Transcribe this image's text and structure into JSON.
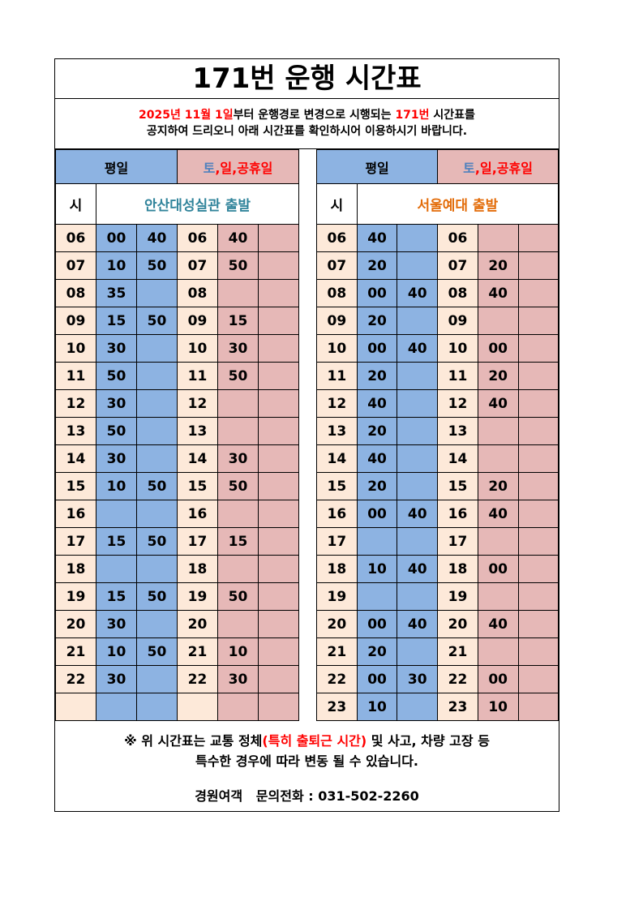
{
  "title": "171번 운행 시간표",
  "notice": {
    "date": "2025년 11월 1일",
    "mid": "부터 운행경로 변경으로 시행되는 ",
    "route": "171번",
    "end": " 시간표를",
    "line2": "공지하여 드리오니 아래 시간표를 확인하시어 이용하시기 바랍니다."
  },
  "headers": {
    "weekday": "평일",
    "weekend_to": "토",
    "weekend_rest": ",일,공휴일",
    "hour": "시"
  },
  "colors": {
    "weekday": "#8db3e2",
    "hour": "#fde9d9",
    "weekend": "#e6b8b7",
    "stop_a": "#31849b",
    "stop_b": "#e36c09"
  },
  "tables": [
    {
      "stop": "안산대성실관 출발",
      "rows": [
        [
          "06",
          "00",
          "40",
          "06",
          "40",
          ""
        ],
        [
          "07",
          "10",
          "50",
          "07",
          "50",
          ""
        ],
        [
          "08",
          "35",
          "",
          "08",
          "",
          ""
        ],
        [
          "09",
          "15",
          "50",
          "09",
          "15",
          ""
        ],
        [
          "10",
          "30",
          "",
          "10",
          "30",
          ""
        ],
        [
          "11",
          "50",
          "",
          "11",
          "50",
          ""
        ],
        [
          "12",
          "30",
          "",
          "12",
          "",
          ""
        ],
        [
          "13",
          "50",
          "",
          "13",
          "",
          ""
        ],
        [
          "14",
          "30",
          "",
          "14",
          "30",
          ""
        ],
        [
          "15",
          "10",
          "50",
          "15",
          "50",
          ""
        ],
        [
          "16",
          "",
          "",
          "16",
          "",
          ""
        ],
        [
          "17",
          "15",
          "50",
          "17",
          "15",
          ""
        ],
        [
          "18",
          "",
          "",
          "18",
          "",
          ""
        ],
        [
          "19",
          "15",
          "50",
          "19",
          "50",
          ""
        ],
        [
          "20",
          "30",
          "",
          "20",
          "",
          ""
        ],
        [
          "21",
          "10",
          "50",
          "21",
          "10",
          ""
        ],
        [
          "22",
          "30",
          "",
          "22",
          "30",
          ""
        ],
        [
          "",
          "",
          "",
          "",
          "",
          ""
        ]
      ]
    },
    {
      "stop": "서울예대 출발",
      "rows": [
        [
          "06",
          "40",
          "",
          "06",
          "",
          ""
        ],
        [
          "07",
          "20",
          "",
          "07",
          "20",
          ""
        ],
        [
          "08",
          "00",
          "40",
          "08",
          "40",
          ""
        ],
        [
          "09",
          "20",
          "",
          "09",
          "",
          ""
        ],
        [
          "10",
          "00",
          "40",
          "10",
          "00",
          ""
        ],
        [
          "11",
          "20",
          "",
          "11",
          "20",
          ""
        ],
        [
          "12",
          "40",
          "",
          "12",
          "40",
          ""
        ],
        [
          "13",
          "20",
          "",
          "13",
          "",
          ""
        ],
        [
          "14",
          "40",
          "",
          "14",
          "",
          ""
        ],
        [
          "15",
          "20",
          "",
          "15",
          "20",
          ""
        ],
        [
          "16",
          "00",
          "40",
          "16",
          "40",
          ""
        ],
        [
          "17",
          "",
          "",
          "17",
          "",
          ""
        ],
        [
          "18",
          "10",
          "40",
          "18",
          "00",
          ""
        ],
        [
          "19",
          "",
          "",
          "19",
          "",
          ""
        ],
        [
          "20",
          "00",
          "40",
          "20",
          "40",
          ""
        ],
        [
          "21",
          "20",
          "",
          "21",
          "",
          ""
        ],
        [
          "22",
          "00",
          "30",
          "22",
          "00",
          ""
        ],
        [
          "23",
          "10",
          "",
          "23",
          "10",
          ""
        ]
      ]
    }
  ],
  "footer": {
    "pre": "※ 위 시간표는 교통 정체",
    "red": "(특히 출퇴근 시간)",
    "post": " 및 사고, 차량 고장 등",
    "line2": "특수한 경우에 따라 변동 될 수 있습니다.",
    "contact": "경원여객   문의전화 : 031-502-2260"
  }
}
